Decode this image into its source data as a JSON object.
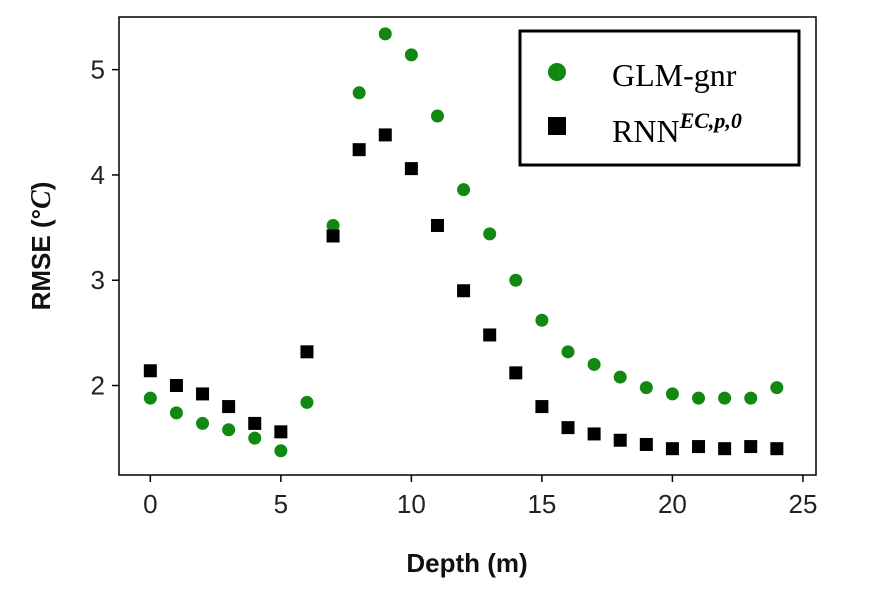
{
  "chart_data": {
    "type": "scatter",
    "xlabel": "Depth (m)",
    "ylabel_main": "RMSE (°",
    "ylabel_unit": "C",
    "ylabel_close": ")",
    "xlim": [
      -1.2,
      25.5
    ],
    "ylim": [
      1.15,
      5.5
    ],
    "xticks": [
      0,
      5,
      10,
      15,
      20,
      25
    ],
    "yticks": [
      2,
      3,
      4,
      5
    ],
    "legend_position": "top-right",
    "grid": false,
    "series": [
      {
        "name": "GLM-gnr",
        "marker": "circle",
        "color": "#118811",
        "x": [
          0,
          1,
          2,
          3,
          4,
          5,
          6,
          7,
          8,
          9,
          10,
          11,
          12,
          13,
          14,
          15,
          16,
          17,
          18,
          19,
          20,
          21,
          22,
          23,
          24
        ],
        "y": [
          1.88,
          1.74,
          1.64,
          1.58,
          1.5,
          1.38,
          1.84,
          3.52,
          4.78,
          5.34,
          5.14,
          4.56,
          3.86,
          3.44,
          3.0,
          2.62,
          2.32,
          2.2,
          2.08,
          1.98,
          1.92,
          1.88,
          1.88,
          1.88,
          1.98
        ]
      },
      {
        "name_base": "RNN",
        "name_sup": "EC,p,0",
        "marker": "square",
        "color": "#000000",
        "x": [
          0,
          1,
          2,
          3,
          4,
          5,
          6,
          7,
          8,
          9,
          10,
          11,
          12,
          13,
          14,
          15,
          16,
          17,
          18,
          19,
          20,
          21,
          22,
          23,
          24
        ],
        "y": [
          2.14,
          2.0,
          1.92,
          1.8,
          1.64,
          1.56,
          2.32,
          3.42,
          4.24,
          4.38,
          4.06,
          3.52,
          2.9,
          2.48,
          2.12,
          1.8,
          1.6,
          1.54,
          1.48,
          1.44,
          1.4,
          1.42,
          1.4,
          1.42,
          1.4
        ]
      }
    ]
  }
}
